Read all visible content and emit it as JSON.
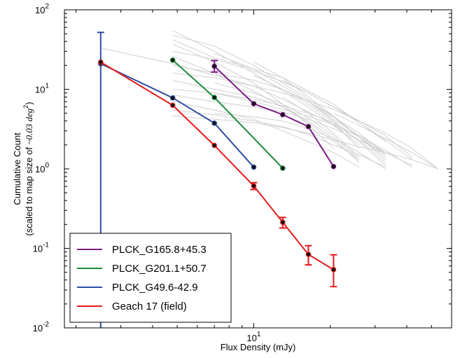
{
  "chart_data": {
    "type": "line",
    "xlabel": "Flux Density (mJy)",
    "ylabel_line1": "Cumulative Count",
    "ylabel_line2_prefix": "(scaled to map size of ",
    "ylabel_line2_math": "~0.03 deg",
    "ylabel_line2_suffix": ")",
    "x_scale": "log",
    "y_scale": "log",
    "xlim": [
      1.8,
      60
    ],
    "ylim": [
      0.01,
      100
    ],
    "x_ticks": [
      {
        "value": 10,
        "base": "10",
        "exp": "1"
      }
    ],
    "y_ticks": [
      {
        "value": 0.01,
        "base": "10",
        "exp": "-2"
      },
      {
        "value": 0.1,
        "base": "10",
        "exp": "-1"
      },
      {
        "value": 1,
        "base": "10",
        "exp": "0"
      },
      {
        "value": 10,
        "base": "10",
        "exp": "1"
      },
      {
        "value": 100,
        "base": "10",
        "exp": "2"
      }
    ],
    "grid": false,
    "legend_position": "lower-left",
    "series": [
      {
        "name": "PLCK_G165.8+45.3",
        "color": "#7b1f84",
        "x": [
          7.0,
          10.0,
          13.0,
          16.4,
          20.6
        ],
        "y": [
          19.5,
          6.6,
          4.8,
          3.4,
          1.07
        ],
        "yerr_low": [
          16.5,
          null,
          null,
          null,
          null
        ],
        "yerr_high": [
          23.0,
          null,
          null,
          null,
          null
        ]
      },
      {
        "name": "PLCK_G201.1+50.7",
        "color": "#1e8c3a",
        "x": [
          4.8,
          7.0,
          13.0
        ],
        "y": [
          23.3,
          7.9,
          1.02
        ],
        "yerr_low": [
          null,
          null,
          null
        ],
        "yerr_high": [
          null,
          null,
          null
        ]
      },
      {
        "name": "PLCK_G49.6-42.9",
        "color": "#2c4ea3",
        "x": [
          2.5,
          4.8,
          7.0,
          10.0
        ],
        "y": [
          21.0,
          7.8,
          3.75,
          1.05
        ],
        "yerr_low": [
          0.01,
          null,
          null,
          null
        ],
        "yerr_high": [
          52.0,
          null,
          null,
          null
        ]
      },
      {
        "name": "Geach 17 (field)",
        "color": "#e41a1c",
        "x": [
          2.5,
          4.8,
          7.0,
          10.0,
          13.0,
          16.4,
          20.6
        ],
        "y": [
          22.0,
          6.3,
          1.97,
          0.61,
          0.213,
          0.084,
          0.054
        ],
        "yerr_low": [
          null,
          null,
          null,
          0.55,
          0.18,
          0.062,
          0.033
        ],
        "yerr_high": [
          null,
          null,
          null,
          0.67,
          0.245,
          0.108,
          0.083
        ]
      }
    ],
    "background_lines": {
      "color": "#d0d0d0",
      "lines": [
        {
          "x": [
            2.5,
            4.8,
            7.0,
            10.0,
            13.0,
            16.4,
            20.6,
            26.0,
            33.0
          ],
          "y": [
            33,
            21,
            15,
            11,
            7.5,
            5.2,
            3.6,
            2.3,
            1.2
          ]
        },
        {
          "x": [
            4.8,
            7.0,
            10.0,
            13.0,
            16.4,
            20.6,
            26.0
          ],
          "y": [
            55,
            30,
            16,
            9.5,
            6.0,
            3.5,
            2.0
          ]
        },
        {
          "x": [
            4.8,
            7.0,
            10.0,
            13.0,
            16.4,
            20.6,
            26.0,
            33.0
          ],
          "y": [
            48,
            35,
            20,
            12,
            7.5,
            4.5,
            2.5,
            1.4
          ]
        },
        {
          "x": [
            4.8,
            7.0,
            10.0,
            13.0,
            16.4,
            20.6,
            26.0,
            33.0
          ],
          "y": [
            42,
            25,
            18,
            14,
            9.5,
            6.5,
            3.8,
            2.2
          ]
        },
        {
          "x": [
            4.8,
            7.0,
            10.0,
            13.0,
            16.4,
            20.6
          ],
          "y": [
            37,
            22,
            12,
            6.5,
            3.6,
            1.8
          ]
        },
        {
          "x": [
            4.8,
            7.0,
            10.0,
            13.0,
            16.4,
            20.6,
            26.0,
            33.0,
            42.0
          ],
          "y": [
            30,
            24,
            17,
            12.5,
            9.0,
            6.0,
            4.0,
            2.6,
            1.4
          ]
        },
        {
          "x": [
            4.8,
            7.0,
            10.0,
            13.0,
            16.4,
            20.6,
            26.0
          ],
          "y": [
            26,
            16,
            9.5,
            6.0,
            3.8,
            2.2,
            1.3
          ]
        },
        {
          "x": [
            4.8,
            7.0,
            10.0,
            13.0,
            16.4,
            20.6,
            26.0,
            33.0
          ],
          "y": [
            20,
            16,
            13,
            10,
            7.0,
            4.2,
            2.6,
            1.6
          ]
        },
        {
          "x": [
            4.8,
            7.0,
            10.0,
            13.0,
            16.4,
            20.6,
            26.0,
            33.0,
            42.0,
            53.0
          ],
          "y": [
            16,
            14,
            11,
            9.0,
            7.2,
            5.6,
            4.0,
            2.8,
            1.8,
            1.0
          ]
        },
        {
          "x": [
            4.8,
            7.0,
            10.0,
            13.0,
            16.4,
            20.6,
            26.0
          ],
          "y": [
            13,
            10,
            8.0,
            6.0,
            4.0,
            2.4,
            1.2
          ]
        },
        {
          "x": [
            4.8,
            7.0,
            10.0,
            13.0,
            16.4,
            20.6,
            26.0,
            33.0
          ],
          "y": [
            10,
            9.0,
            7.5,
            6.2,
            5.0,
            3.8,
            2.5,
            1.5
          ]
        },
        {
          "x": [
            4.8,
            7.0,
            10.0,
            13.0,
            16.4,
            20.6,
            26.0,
            33.0,
            42.0
          ],
          "y": [
            8.5,
            7.0,
            6.0,
            5.2,
            4.2,
            3.2,
            2.3,
            1.6,
            1.1
          ]
        },
        {
          "x": [
            4.8,
            7.0,
            10.0,
            13.0,
            16.4,
            20.6,
            26.0
          ],
          "y": [
            7.0,
            5.5,
            4.2,
            3.0,
            2.2,
            1.6,
            1.05
          ]
        },
        {
          "x": [
            4.8,
            7.0,
            10.0,
            13.0,
            16.4,
            20.6,
            26.0,
            33.0
          ],
          "y": [
            5.5,
            4.8,
            4.0,
            3.4,
            2.7,
            2.0,
            1.5,
            1.05
          ]
        },
        {
          "x": [
            4.8,
            7.0,
            10.0,
            13.0,
            16.4,
            20.6,
            26.0,
            33.0,
            42.0,
            53.0
          ],
          "y": [
            4.6,
            4.2,
            3.8,
            3.3,
            2.8,
            2.3,
            1.9,
            1.6,
            1.3,
            1.0
          ]
        },
        {
          "x": [
            7.0,
            10.0,
            13.0,
            16.4,
            20.6,
            26.0,
            33.0
          ],
          "y": [
            28,
            18,
            11,
            7.0,
            4.0,
            2.2,
            1.1
          ]
        },
        {
          "x": [
            7.0,
            10.0,
            13.0,
            16.4,
            20.6,
            26.0
          ],
          "y": [
            12,
            9.0,
            6.5,
            4.4,
            2.6,
            1.3
          ]
        },
        {
          "x": [
            7.0,
            10.0,
            13.0,
            16.4,
            20.6,
            26.0,
            33.0,
            42.0
          ],
          "y": [
            9,
            7.0,
            5.6,
            4.6,
            3.6,
            2.6,
            1.7,
            1.05
          ]
        },
        {
          "x": [
            10.0,
            13.0,
            16.4,
            20.6,
            26.0,
            33.0
          ],
          "y": [
            22,
            14,
            8.0,
            4.6,
            2.5,
            1.3
          ]
        },
        {
          "x": [
            10.0,
            13.0,
            16.4,
            20.6,
            26.0
          ],
          "y": [
            15,
            10,
            6.5,
            3.8,
            1.8
          ]
        },
        {
          "x": [
            13.0,
            16.4,
            20.6,
            26.0,
            33.0,
            42.0
          ],
          "y": [
            13,
            9.0,
            6.0,
            3.8,
            2.3,
            1.3
          ]
        },
        {
          "x": [
            13.0,
            16.4,
            20.6,
            26.0
          ],
          "y": [
            8.0,
            5.0,
            2.8,
            1.4
          ]
        },
        {
          "x": [
            16.4,
            20.6,
            26.0,
            33.0
          ],
          "y": [
            7.0,
            4.5,
            2.8,
            1.5
          ]
        },
        {
          "x": [
            20.6,
            26.0,
            33.0,
            42.0,
            53.0
          ],
          "y": [
            5.0,
            3.5,
            2.4,
            1.6,
            1.0
          ]
        },
        {
          "x": [
            7.0,
            10.0,
            13.0,
            16.4,
            20.6,
            26.0,
            33.0
          ],
          "y": [
            5.0,
            4.5,
            4.0,
            3.2,
            2.4,
            1.6,
            1.0
          ]
        }
      ]
    }
  }
}
